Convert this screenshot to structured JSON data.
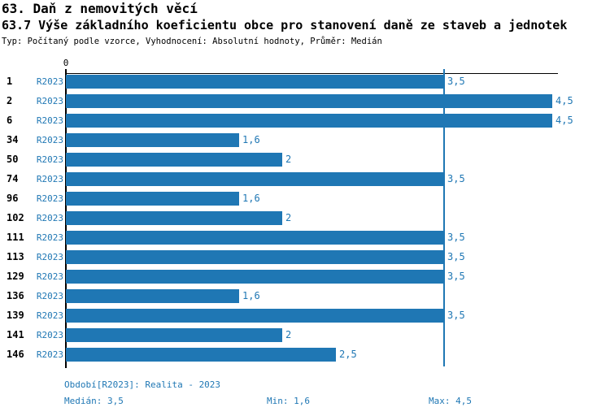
{
  "header": {
    "title": "63. Daň z nemovitých věcí",
    "subtitle": "63.7 Výše základního koeficientu obce pro stanovení daně ze staveb a jednotek",
    "meta": "Typ: Počítaný podle vzorce, Vyhodnocení: Absolutní hodnoty, Průměr: Medián"
  },
  "colors": {
    "accent": "#1f77b4",
    "axis": "#000000",
    "background": "#ffffff"
  },
  "chart_data": {
    "type": "bar",
    "orientation": "horizontal",
    "title": "63.7 Výše základního koeficientu obce pro stanovení daně ze staveb a jednotek",
    "categories": [
      "1",
      "2",
      "6",
      "34",
      "50",
      "74",
      "96",
      "102",
      "111",
      "113",
      "129",
      "136",
      "139",
      "141",
      "146"
    ],
    "series": [
      {
        "name": "R2023",
        "values": [
          3.5,
          4.5,
          4.5,
          1.6,
          2,
          3.5,
          1.6,
          2,
          3.5,
          3.5,
          3.5,
          1.6,
          3.5,
          2,
          2.5
        ],
        "value_labels": [
          "3,5",
          "4,5",
          "4,5",
          "1,6",
          "2",
          "3,5",
          "1,6",
          "2",
          "3,5",
          "3,5",
          "3,5",
          "1,6",
          "3,5",
          "2",
          "2,5"
        ]
      }
    ],
    "xlabel": "",
    "ylabel": "",
    "xlim": [
      0,
      4.55
    ],
    "x_tick_labels": [
      "0"
    ],
    "grid": false,
    "legend_position": "none",
    "reference_line": {
      "value": 3.5,
      "meaning": "median"
    },
    "zero_tick_label": "0"
  },
  "footer": {
    "period": "Období[R2023]: Realita - 2023",
    "median": "Medián: 3,5",
    "min": "Min: 1,6",
    "max": "Max: 4,5"
  }
}
